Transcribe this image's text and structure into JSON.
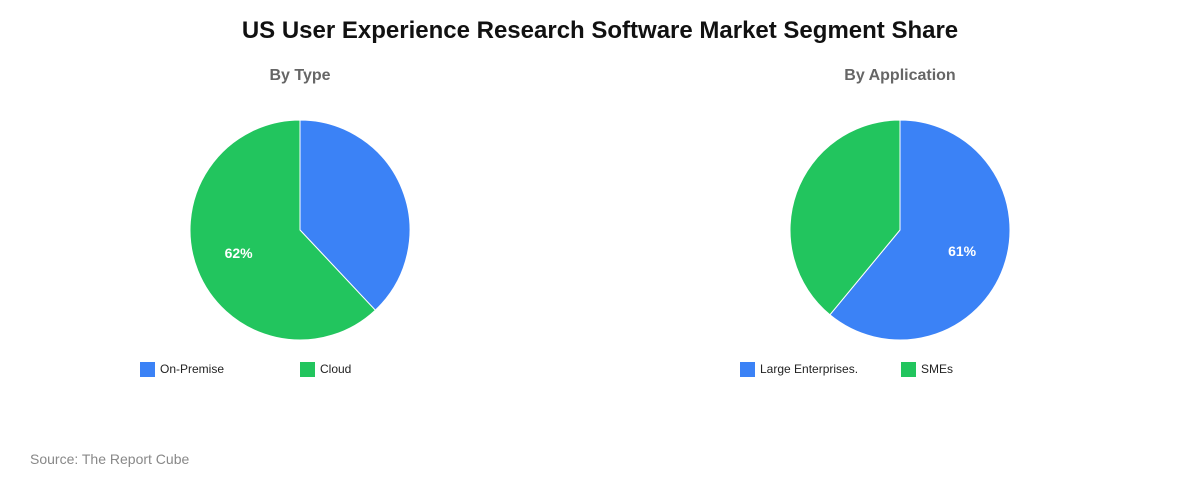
{
  "title": "US User Experience Research Software Market Segment Share",
  "source": "Source: The Report Cube",
  "chart_data": [
    {
      "type": "pie",
      "title": "By Type",
      "categories": [
        "On-Premise",
        "Cloud"
      ],
      "values": [
        38,
        62
      ],
      "colors": [
        "#3b82f6",
        "#22c55e"
      ],
      "data_labels": [
        "",
        "62%"
      ],
      "legend_position": "bottom"
    },
    {
      "type": "pie",
      "title": "By Application",
      "categories": [
        "Large Enterprises.",
        "SMEs"
      ],
      "values": [
        61,
        39
      ],
      "colors": [
        "#3b82f6",
        "#22c55e"
      ],
      "data_labels": [
        "61%",
        ""
      ],
      "legend_position": "bottom"
    }
  ]
}
